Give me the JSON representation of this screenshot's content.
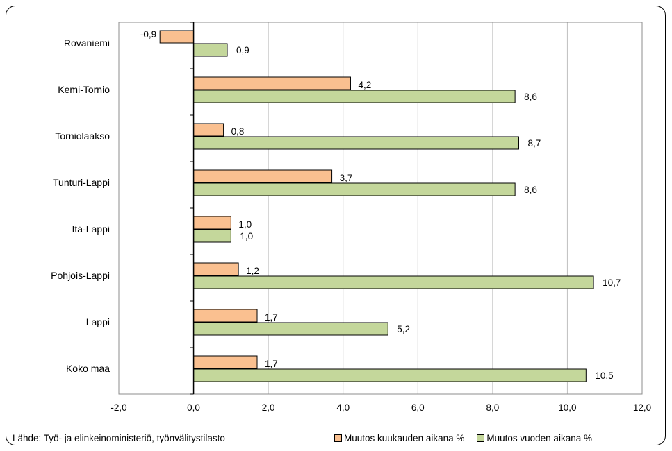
{
  "chart_data": {
    "type": "bar",
    "orientation": "horizontal",
    "categories": [
      "Rovaniemi",
      "Kemi-Tornio",
      "Torniolaakso",
      "Tunturi-Lappi",
      "Itä-Lappi",
      "Pohjois-Lappi",
      "Lappi",
      "Koko maa"
    ],
    "series": [
      {
        "name": "Muutos kuukauden aikana %",
        "color": "#FAC090",
        "values": [
          -0.9,
          4.2,
          0.8,
          3.7,
          1.0,
          1.2,
          1.7,
          1.7
        ],
        "labels": [
          "-0,9",
          "4,2",
          "0,8",
          "3,7",
          "1,0",
          "1,2",
          "1,7",
          "1,7"
        ]
      },
      {
        "name": "Muutos vuoden aikana %",
        "color": "#C4D79B",
        "values": [
          0.9,
          8.6,
          8.7,
          8.6,
          1.0,
          10.7,
          5.2,
          10.5
        ],
        "labels": [
          "0,9",
          "8,6",
          "8,7",
          "8,6",
          "1,0",
          "10,7",
          "5,2",
          "10,5"
        ]
      }
    ],
    "xlim": [
      -2.0,
      12.0
    ],
    "xticks": [
      -2.0,
      0.0,
      2.0,
      4.0,
      6.0,
      8.0,
      10.0,
      12.0
    ],
    "xtick_labels": [
      "-2,0",
      "0,0",
      "2,0",
      "4,0",
      "6,0",
      "8,0",
      "10,0",
      "12,0"
    ],
    "grid": "vertical",
    "legend": "bottom-right"
  },
  "source_note": "Lähde: Työ- ja elinkeinoministeriö, työnvälitystilasto"
}
